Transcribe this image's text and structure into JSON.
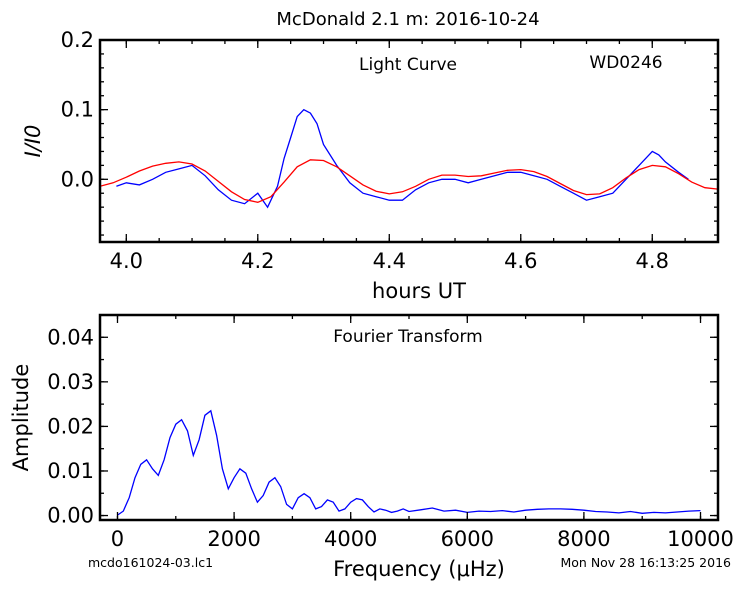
{
  "figure": {
    "suptitle": "McDonald 2.1 m:  2016-10-24",
    "footer_left": "mcdo161024-03.lc1",
    "footer_right": "Mon Nov 28 16:13:25 2016"
  },
  "chart_data": [
    {
      "type": "line",
      "title": "Light Curve",
      "annotation": "WD0246",
      "xlabel": "hours UT",
      "ylabel": "I/I0",
      "xlim": [
        3.96,
        4.9
      ],
      "ylim": [
        -0.09,
        0.2
      ],
      "xticks": [
        "4.0",
        "4.2",
        "4.4",
        "4.6",
        "4.8"
      ],
      "yticks": [
        "0.0",
        "0.1",
        "0.2"
      ],
      "grid": false,
      "series": [
        {
          "color": "#0000ff",
          "x": [
            3.985,
            4.0,
            4.02,
            4.04,
            4.06,
            4.08,
            4.1,
            4.12,
            4.14,
            4.16,
            4.18,
            4.2,
            4.215,
            4.23,
            4.24,
            4.25,
            4.26,
            4.27,
            4.28,
            4.29,
            4.3,
            4.32,
            4.34,
            4.36,
            4.38,
            4.4,
            4.42,
            4.44,
            4.46,
            4.48,
            4.5,
            4.52,
            4.54,
            4.56,
            4.58,
            4.6,
            4.62,
            4.64,
            4.66,
            4.68,
            4.7,
            4.72,
            4.74,
            4.76,
            4.78,
            4.8,
            4.81,
            4.82,
            4.84,
            4.855
          ],
          "y": [
            -0.01,
            -0.005,
            -0.008,
            0.0,
            0.01,
            0.015,
            0.02,
            0.005,
            -0.015,
            -0.03,
            -0.035,
            -0.02,
            -0.04,
            -0.01,
            0.03,
            0.06,
            0.09,
            0.1,
            0.095,
            0.08,
            0.05,
            0.02,
            -0.005,
            -0.02,
            -0.025,
            -0.03,
            -0.03,
            -0.015,
            -0.005,
            0.0,
            0.0,
            -0.005,
            0.0,
            0.005,
            0.01,
            0.01,
            0.005,
            0.0,
            -0.01,
            -0.02,
            -0.03,
            -0.025,
            -0.02,
            0.0,
            0.02,
            0.04,
            0.035,
            0.025,
            0.01,
            0.0
          ]
        },
        {
          "color": "#ff0000",
          "x": [
            3.96,
            3.98,
            4.0,
            4.02,
            4.04,
            4.06,
            4.08,
            4.1,
            4.12,
            4.14,
            4.16,
            4.18,
            4.2,
            4.22,
            4.24,
            4.26,
            4.28,
            4.3,
            4.32,
            4.34,
            4.36,
            4.38,
            4.4,
            4.42,
            4.44,
            4.46,
            4.48,
            4.5,
            4.52,
            4.54,
            4.56,
            4.58,
            4.6,
            4.62,
            4.64,
            4.66,
            4.68,
            4.7,
            4.72,
            4.74,
            4.76,
            4.78,
            4.8,
            4.82,
            4.84,
            4.86,
            4.88,
            4.9
          ],
          "y": [
            -0.01,
            -0.005,
            0.003,
            0.012,
            0.019,
            0.023,
            0.025,
            0.022,
            0.012,
            -0.003,
            -0.018,
            -0.029,
            -0.033,
            -0.025,
            -0.004,
            0.018,
            0.028,
            0.027,
            0.018,
            0.005,
            -0.008,
            -0.017,
            -0.021,
            -0.018,
            -0.01,
            0.0,
            0.006,
            0.006,
            0.004,
            0.005,
            0.009,
            0.013,
            0.014,
            0.011,
            0.004,
            -0.006,
            -0.016,
            -0.022,
            -0.021,
            -0.012,
            0.002,
            0.014,
            0.02,
            0.018,
            0.008,
            -0.004,
            -0.012,
            -0.014
          ]
        }
      ]
    },
    {
      "type": "line",
      "title": "Fourier Transform",
      "xlabel": "Frequency (μHz)",
      "ylabel": "Amplitude",
      "xlim": [
        -300,
        10300
      ],
      "ylim": [
        -0.001,
        0.045
      ],
      "xticks": [
        "0",
        "2000",
        "4000",
        "6000",
        "8000",
        "10000"
      ],
      "yticks": [
        "0.00",
        "0.01",
        "0.02",
        "0.03",
        "0.04"
      ],
      "grid": false,
      "series": [
        {
          "color": "#0000ff",
          "x": [
            0,
            100,
            200,
            300,
            400,
            500,
            600,
            700,
            800,
            900,
            1000,
            1100,
            1200,
            1300,
            1400,
            1500,
            1600,
            1700,
            1800,
            1900,
            2000,
            2100,
            2200,
            2300,
            2400,
            2500,
            2600,
            2700,
            2800,
            2900,
            3000,
            3100,
            3200,
            3300,
            3400,
            3500,
            3600,
            3700,
            3800,
            3900,
            4000,
            4100,
            4200,
            4300,
            4400,
            4500,
            4600,
            4700,
            4800,
            4900,
            5000,
            5200,
            5400,
            5600,
            5800,
            6000,
            6200,
            6400,
            6600,
            6800,
            7000,
            7200,
            7400,
            7600,
            7800,
            8000,
            8200,
            8400,
            8600,
            8800,
            9000,
            9200,
            9400,
            9600,
            9800,
            10000
          ],
          "y": [
            0.0001,
            0.001,
            0.004,
            0.0085,
            0.0115,
            0.0125,
            0.0105,
            0.009,
            0.0125,
            0.0175,
            0.0205,
            0.0215,
            0.019,
            0.0135,
            0.017,
            0.0225,
            0.0235,
            0.018,
            0.0105,
            0.006,
            0.0085,
            0.0105,
            0.0095,
            0.006,
            0.003,
            0.0045,
            0.0075,
            0.0085,
            0.0065,
            0.0025,
            0.0015,
            0.004,
            0.0049,
            0.004,
            0.0015,
            0.002,
            0.0035,
            0.003,
            0.001,
            0.0015,
            0.003,
            0.0038,
            0.0035,
            0.002,
            0.0008,
            0.0015,
            0.0012,
            0.0007,
            0.001,
            0.0015,
            0.0009,
            0.0013,
            0.0017,
            0.001,
            0.0012,
            0.0007,
            0.001,
            0.0009,
            0.0011,
            0.0008,
            0.0012,
            0.0014,
            0.0015,
            0.0015,
            0.0014,
            0.0012,
            0.0009,
            0.0008,
            0.0006,
            0.0009,
            0.0005,
            0.0007,
            0.0006,
            0.0008,
            0.001,
            0.0011
          ]
        }
      ]
    }
  ]
}
